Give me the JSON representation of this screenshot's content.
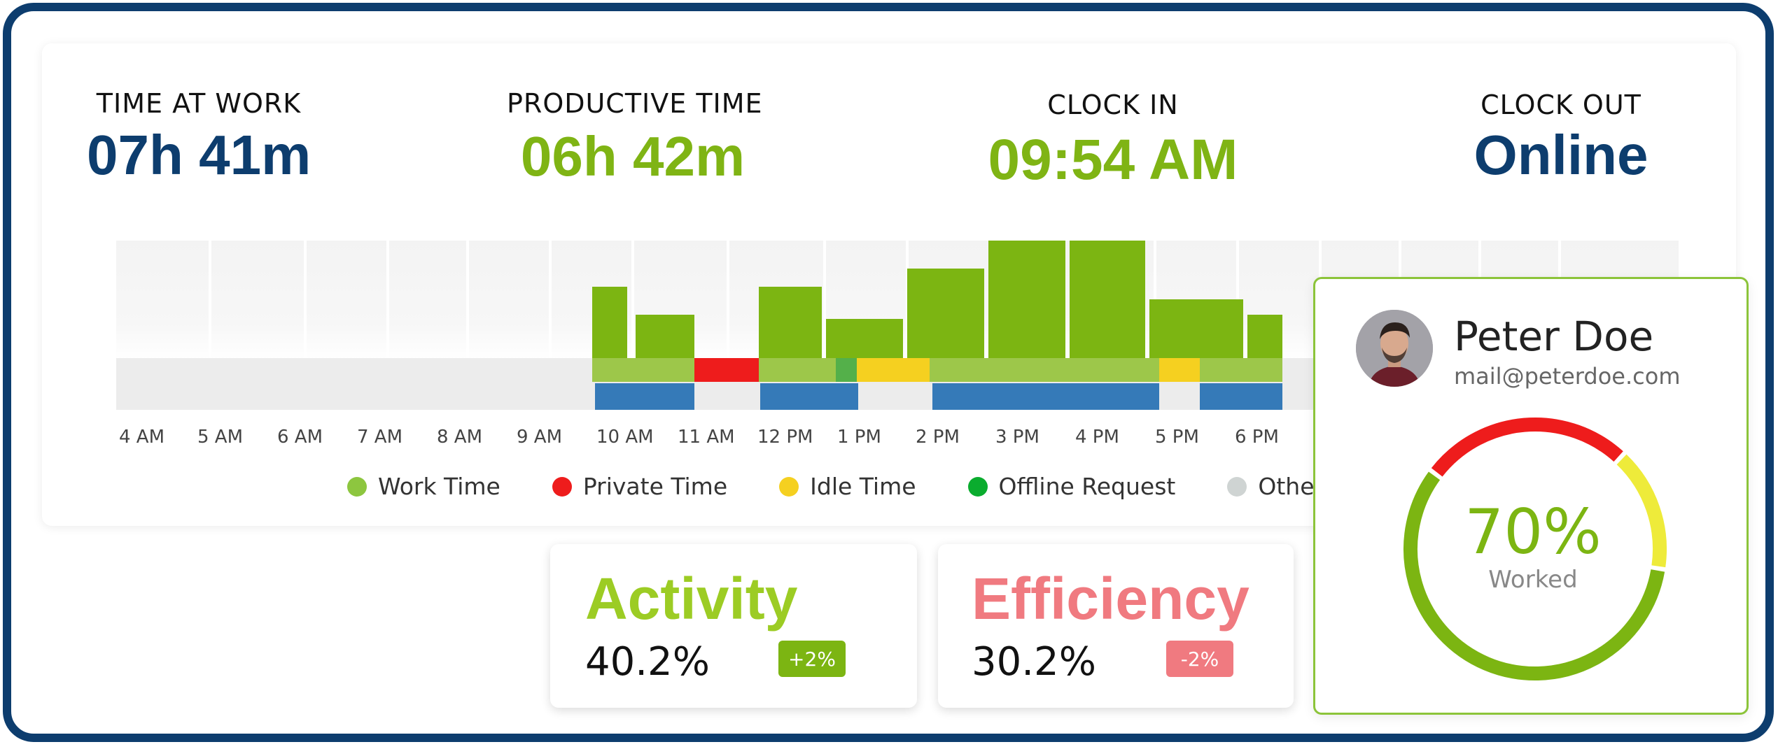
{
  "stats": {
    "time_at_work": {
      "label": "TIME AT WORK",
      "value": "07h 41m"
    },
    "productive_time": {
      "label": "PRODUCTIVE TIME",
      "value": "06h 42m"
    },
    "clock_in": {
      "label": "CLOCK IN",
      "value": "09:54 AM"
    },
    "clock_out": {
      "label": "CLOCK OUT",
      "value": "Online"
    }
  },
  "timeline": {
    "hours": [
      "4 AM",
      "5 AM",
      "6 AM",
      "7 AM",
      "8 AM",
      "9 AM",
      "10 AM",
      "11 AM",
      "12 PM",
      "1 PM",
      "2 PM",
      "3 PM",
      "4 PM",
      "5 PM",
      "6 PM"
    ]
  },
  "legend": [
    {
      "label": "Work Time",
      "color": "#8dc63f"
    },
    {
      "label": "Private Time",
      "color": "#ee1c1c"
    },
    {
      "label": "Idle Time",
      "color": "#f5d020"
    },
    {
      "label": "Offline Request",
      "color": "#0aac2e"
    },
    {
      "label": "Other Tim",
      "color": "#cfd4d3"
    }
  ],
  "activity": {
    "title": "Activity",
    "value": "40.2%",
    "change": "+2%",
    "title_color": "#9ccc24",
    "badge_color": "#7cb512"
  },
  "efficiency": {
    "title": "Efficiency",
    "value": "30.2%",
    "change": "-2%",
    "title_color": "#f07a80",
    "badge_color": "#f07a80"
  },
  "profile": {
    "name": "Peter Doe",
    "email": "mail@peterdoe.com",
    "worked_percent": "70%",
    "worked_label": "Worked"
  },
  "colors": {
    "brand_dark": "#0d3d6e",
    "brand_green": "#7cb512"
  }
}
